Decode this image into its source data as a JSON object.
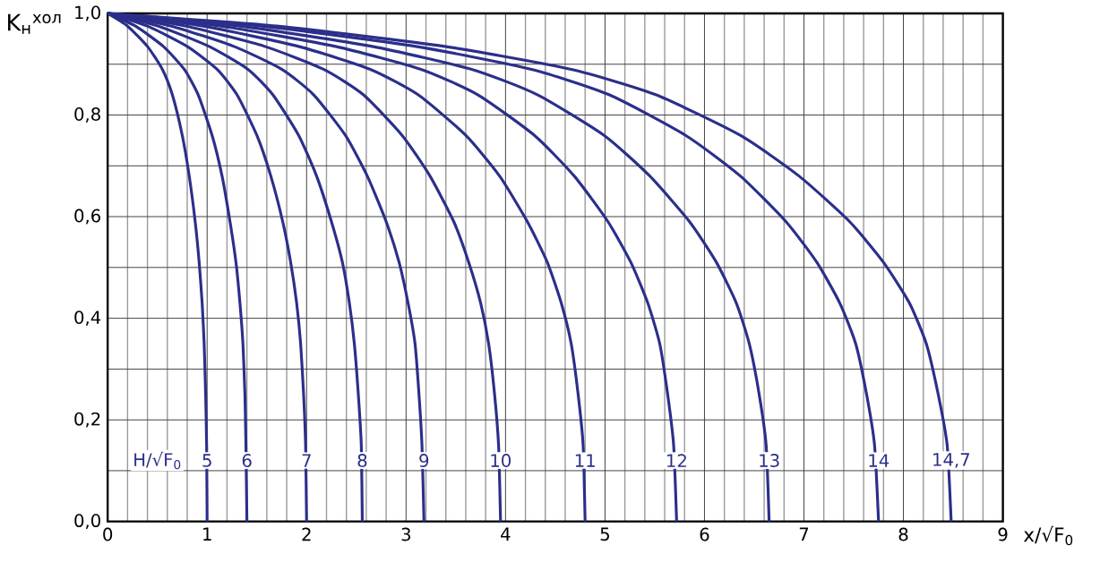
{
  "chart_data": {
    "type": "line",
    "xlabel": "x/√F$_{0}$",
    "ylabel": "K$_{н}$$^{хол}$",
    "annotations": [
      "H/√F$_{0}$"
    ],
    "xlim": [
      0,
      9
    ],
    "ylim": [
      0,
      1
    ],
    "xticks": [
      0,
      1,
      2,
      3,
      4,
      5,
      6,
      7,
      8,
      9
    ],
    "yticks": [
      {
        "value": 0,
        "label": "0,0"
      },
      {
        "value": 0.2,
        "label": "0,2"
      },
      {
        "value": 0.4,
        "label": "0,4"
      },
      {
        "value": 0.6,
        "label": "0,6"
      },
      {
        "value": 0.8,
        "label": "0,8"
      },
      {
        "value": 1,
        "label": "1,0"
      }
    ],
    "grid": true,
    "marker": "none",
    "line_style": "solid",
    "series": [
      {
        "name": "5",
        "color": "#2b2f8a",
        "x": [
          0,
          0.2,
          0.4,
          0.55,
          0.65,
          0.75,
          0.82,
          0.88,
          0.92,
          0.95,
          0.97,
          0.985,
          0.995,
          1.0
        ],
        "values": [
          1,
          0.975,
          0.935,
          0.89,
          0.84,
          0.76,
          0.68,
          0.59,
          0.51,
          0.43,
          0.35,
          0.25,
          0.15,
          0
        ]
      },
      {
        "name": "6",
        "color": "#2b2f8a",
        "x": [
          0,
          0.28,
          0.56,
          0.77,
          0.91,
          1.05,
          1.15,
          1.23,
          1.29,
          1.33,
          1.36,
          1.38,
          1.39,
          1.4
        ],
        "values": [
          1,
          0.975,
          0.935,
          0.89,
          0.84,
          0.76,
          0.68,
          0.59,
          0.51,
          0.43,
          0.35,
          0.25,
          0.15,
          0
        ]
      },
      {
        "name": "7",
        "color": "#2b2f8a",
        "x": [
          0,
          0.4,
          0.8,
          1.1,
          1.3,
          1.5,
          1.64,
          1.76,
          1.84,
          1.9,
          1.94,
          1.97,
          1.99,
          2.0
        ],
        "values": [
          1,
          0.975,
          0.935,
          0.89,
          0.84,
          0.76,
          0.68,
          0.59,
          0.51,
          0.43,
          0.35,
          0.25,
          0.15,
          0
        ]
      },
      {
        "name": "8",
        "color": "#2b2f8a",
        "x": [
          0,
          0.51,
          1.02,
          1.41,
          1.66,
          1.92,
          2.1,
          2.25,
          2.36,
          2.43,
          2.48,
          2.52,
          2.55,
          2.56
        ],
        "values": [
          1,
          0.975,
          0.935,
          0.89,
          0.84,
          0.76,
          0.68,
          0.59,
          0.51,
          0.43,
          0.35,
          0.25,
          0.15,
          0
        ]
      },
      {
        "name": "9",
        "color": "#2b2f8a",
        "x": [
          0,
          0.64,
          1.27,
          1.75,
          2.07,
          2.39,
          2.61,
          2.8,
          2.93,
          3.02,
          3.09,
          3.13,
          3.16,
          3.18
        ],
        "values": [
          1,
          0.975,
          0.935,
          0.89,
          0.84,
          0.76,
          0.68,
          0.59,
          0.51,
          0.43,
          0.35,
          0.25,
          0.15,
          0
        ]
      },
      {
        "name": "10",
        "color": "#2b2f8a",
        "x": [
          0,
          0.79,
          1.58,
          2.17,
          2.57,
          2.96,
          3.24,
          3.48,
          3.63,
          3.75,
          3.83,
          3.89,
          3.93,
          3.95
        ],
        "values": [
          1,
          0.975,
          0.935,
          0.89,
          0.84,
          0.76,
          0.68,
          0.59,
          0.51,
          0.43,
          0.35,
          0.25,
          0.15,
          0
        ]
      },
      {
        "name": "11",
        "color": "#2b2f8a",
        "x": [
          0,
          0.96,
          1.92,
          2.64,
          3.12,
          3.6,
          3.94,
          4.22,
          4.42,
          4.56,
          4.66,
          4.73,
          4.78,
          4.8
        ],
        "values": [
          1,
          0.975,
          0.935,
          0.89,
          0.84,
          0.76,
          0.68,
          0.59,
          0.51,
          0.43,
          0.35,
          0.25,
          0.15,
          0
        ]
      },
      {
        "name": "12",
        "color": "#2b2f8a",
        "x": [
          0,
          1.14,
          2.29,
          3.15,
          3.72,
          4.29,
          4.69,
          5.03,
          5.26,
          5.43,
          5.55,
          5.63,
          5.69,
          5.72
        ],
        "values": [
          1,
          0.975,
          0.935,
          0.89,
          0.84,
          0.76,
          0.68,
          0.59,
          0.51,
          0.43,
          0.35,
          0.25,
          0.15,
          0
        ]
      },
      {
        "name": "13",
        "color": "#2b2f8a",
        "x": [
          0,
          1.33,
          2.66,
          3.66,
          4.32,
          4.99,
          5.45,
          5.85,
          6.12,
          6.32,
          6.45,
          6.55,
          6.62,
          6.65
        ],
        "values": [
          1,
          0.975,
          0.935,
          0.89,
          0.84,
          0.76,
          0.68,
          0.59,
          0.51,
          0.43,
          0.35,
          0.25,
          0.15,
          0
        ]
      },
      {
        "name": "14",
        "color": "#2b2f8a",
        "x": [
          0,
          1.55,
          3.1,
          4.26,
          5.04,
          5.81,
          6.36,
          6.82,
          7.13,
          7.36,
          7.52,
          7.63,
          7.71,
          7.75
        ],
        "values": [
          1,
          0.975,
          0.935,
          0.89,
          0.84,
          0.76,
          0.68,
          0.59,
          0.51,
          0.43,
          0.35,
          0.25,
          0.15,
          0
        ]
      },
      {
        "name": "14,7",
        "color": "#2b2f8a",
        "x": [
          0,
          1.7,
          3.39,
          4.66,
          5.51,
          6.36,
          6.95,
          7.46,
          7.8,
          8.06,
          8.23,
          8.35,
          8.44,
          8.48
        ],
        "values": [
          1,
          0.975,
          0.935,
          0.89,
          0.84,
          0.76,
          0.68,
          0.59,
          0.51,
          0.43,
          0.35,
          0.25,
          0.15,
          0
        ]
      }
    ]
  }
}
